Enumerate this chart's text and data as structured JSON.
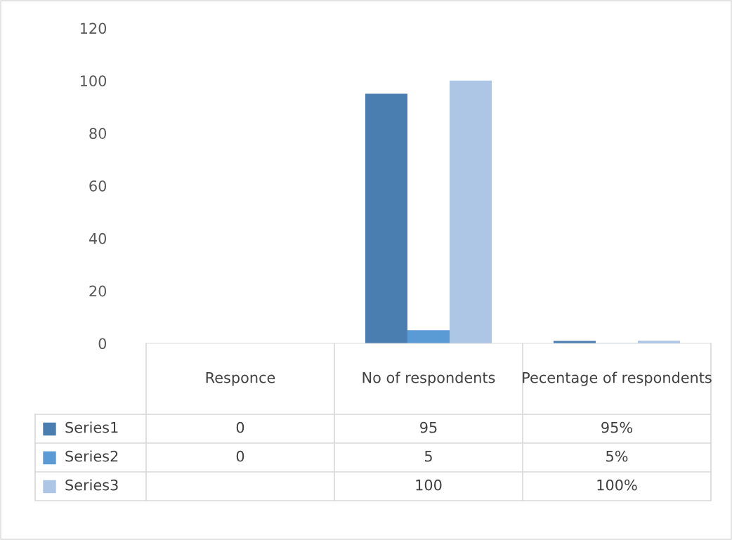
{
  "chart_data": {
    "type": "bar",
    "categories": [
      "Responce",
      "No of respondents",
      "Pecentage of respondents"
    ],
    "series": [
      {
        "name": "Series1",
        "color": "#4a7eb0",
        "values": [
          0,
          95,
          0.95
        ],
        "value_labels": [
          "0",
          "95",
          "95%"
        ]
      },
      {
        "name": "Series2",
        "color": "#5b9bd5",
        "values": [
          0,
          5,
          0.05
        ],
        "value_labels": [
          "0",
          "5",
          "5%"
        ]
      },
      {
        "name": "Series3",
        "color": "#adc6e5",
        "values": [
          null,
          100,
          1
        ],
        "value_labels": [
          null,
          "100",
          "100%"
        ]
      }
    ],
    "ylim": [
      0,
      120
    ],
    "yticks": [
      0,
      20,
      40,
      60,
      80,
      100,
      120
    ],
    "grid": false,
    "legend": "bottom left"
  }
}
